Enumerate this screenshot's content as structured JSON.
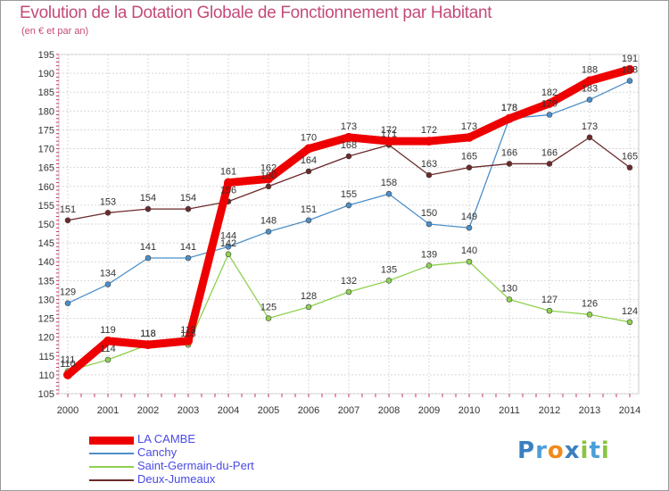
{
  "title": "Evolution de la Dotation Globale de Fonctionnement par Habitant",
  "subtitle": "(en € et par an)",
  "logo": {
    "text": "Proxiti",
    "letters": [
      "P",
      "r",
      "o",
      "x",
      "i",
      "t",
      "i"
    ],
    "colors": [
      "#3a7fc1",
      "#4b9fd8",
      "#f08a1c",
      "#3a7fc1",
      "#8ac43f",
      "#4b9fd8",
      "#8ac43f"
    ]
  },
  "chart_data": {
    "type": "line",
    "title": "Evolution de la Dotation Globale de Fonctionnement par Habitant",
    "subtitle": "(en € et par an)",
    "xlabel": "",
    "ylabel": "",
    "x": [
      "2000",
      "2001",
      "2002",
      "2003",
      "2004",
      "2005",
      "2006",
      "2007",
      "2008",
      "2009",
      "2010",
      "2011",
      "2012",
      "2013",
      "2014"
    ],
    "ylim": [
      105,
      195
    ],
    "yticks": [
      105,
      110,
      115,
      120,
      125,
      130,
      135,
      140,
      145,
      150,
      155,
      160,
      165,
      170,
      175,
      180,
      185,
      190,
      195
    ],
    "grid": true,
    "legend_position": "bottom-left",
    "series": [
      {
        "name": "LA CAMBE",
        "color": "#ee0000",
        "thick": true,
        "values": [
          110,
          119,
          118,
          119,
          161,
          162,
          170,
          173,
          172,
          172,
          173,
          178,
          182,
          188,
          191
        ]
      },
      {
        "name": "Canchy",
        "color": "#4b8fc9",
        "thick": false,
        "values": [
          129,
          134,
          141,
          141,
          144,
          148,
          151,
          155,
          158,
          150,
          149,
          178,
          179,
          183,
          188
        ]
      },
      {
        "name": "Saint-Germain-du-Pert",
        "color": "#8fd14f",
        "thick": false,
        "values": [
          111,
          114,
          118,
          118,
          142,
          125,
          128,
          132,
          135,
          139,
          140,
          130,
          127,
          126,
          124
        ]
      },
      {
        "name": "Deux-Jumeaux",
        "color": "#6b2a2a",
        "thick": false,
        "values": [
          151,
          153,
          154,
          154,
          156,
          160,
          164,
          168,
          171,
          163,
          165,
          166,
          166,
          173,
          165
        ]
      }
    ]
  }
}
